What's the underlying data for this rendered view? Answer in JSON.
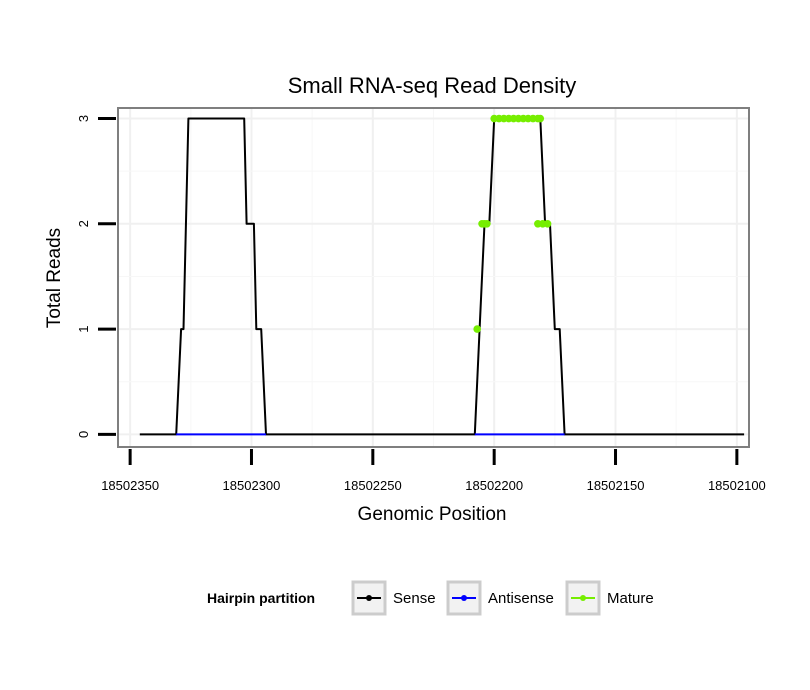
{
  "chart_data": {
    "type": "line",
    "title": "Small RNA-seq Read Density",
    "xlabel": "Genomic Position",
    "ylabel": "Total Reads",
    "x_reversed": true,
    "xlim": [
      18502355,
      18502095
    ],
    "ylim": [
      -0.12,
      3.1
    ],
    "x_ticks": [
      18502350,
      18502300,
      18502250,
      18502200,
      18502150,
      18502100
    ],
    "x_tick_labels": [
      "18502350",
      "18502300",
      "18502250",
      "18502200",
      "18502150",
      "18502100"
    ],
    "y_ticks": [
      0,
      1,
      2,
      3
    ],
    "y_tick_labels": [
      "0",
      "1",
      "2",
      "3"
    ],
    "grid": true,
    "legend": {
      "title": "Hairpin partition",
      "position": "bottom",
      "entries": [
        {
          "name": "Sense",
          "color": "#000000"
        },
        {
          "name": "Antisense",
          "color": "#0000ff"
        },
        {
          "name": "Mature",
          "color": "#76ee00"
        }
      ]
    },
    "series": [
      {
        "name": "Sense",
        "color": "#000000",
        "kind": "line",
        "x": [
          18502346,
          18502331,
          18502329,
          18502328,
          18502326,
          18502303,
          18502302,
          18502299,
          18502298,
          18502296,
          18502294,
          18502208,
          18502206,
          18502204,
          18502202,
          18502200,
          18502181,
          18502179,
          18502177,
          18502175,
          18502173,
          18502171,
          18502097
        ],
        "y": [
          0,
          0,
          1,
          1,
          3,
          3,
          2,
          2,
          1,
          1,
          0,
          0,
          1,
          2,
          2,
          3,
          3,
          2,
          2,
          1,
          1,
          0,
          0
        ]
      },
      {
        "name": "Antisense",
        "color": "#0000ff",
        "kind": "line",
        "x": [
          18502331,
          18502294
        ],
        "y": [
          0,
          0
        ]
      },
      {
        "name": "Antisense",
        "color": "#0000ff",
        "kind": "line",
        "x": [
          18502208,
          18502171
        ],
        "y": [
          0,
          0
        ]
      },
      {
        "name": "Mature",
        "color": "#76ee00",
        "kind": "points",
        "x": [
          18502207,
          18502205,
          18502204,
          18502203,
          18502200,
          18502198,
          18502196,
          18502194,
          18502192,
          18502190,
          18502188,
          18502186,
          18502184,
          18502182,
          18502181,
          18502182,
          18502180,
          18502178
        ],
        "y": [
          1,
          2,
          2,
          2,
          3,
          3,
          3,
          3,
          3,
          3,
          3,
          3,
          3,
          3,
          3,
          2,
          2,
          2
        ]
      }
    ]
  }
}
